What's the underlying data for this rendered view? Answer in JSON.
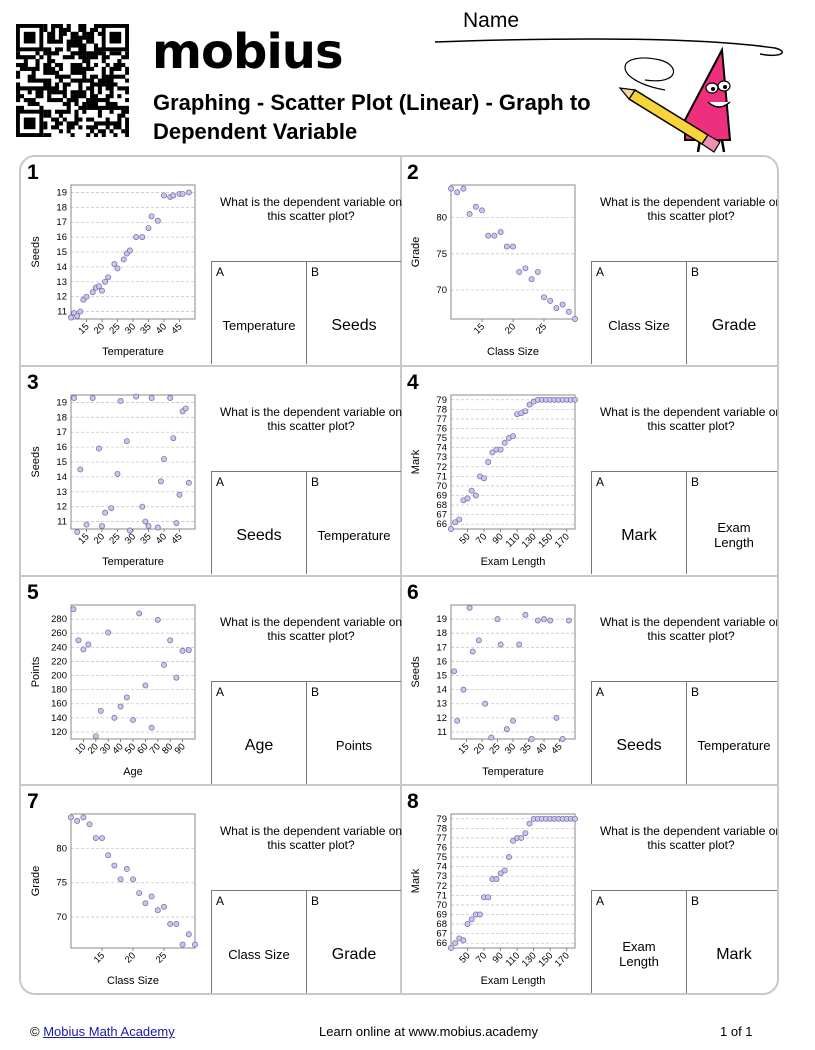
{
  "header": {
    "name_label": "Name",
    "logo": "mobius",
    "title": "Graphing - Scatter Plot (Linear) - Graph to Dependent Variable"
  },
  "colors": {
    "point_fill": "#c9c6ee",
    "point_stroke": "#6c6aa6",
    "grid": "#c8c8c8",
    "mascot_pink": "#ee2f7d",
    "pencil_yellow": "#f6d43a"
  },
  "problems": [
    {
      "number": "1",
      "question": "What is the dependent variable on this scatter plot?",
      "option_a": {
        "letter": "A",
        "text": "Temperature"
      },
      "option_b": {
        "letter": "B",
        "text": "Seeds"
      }
    },
    {
      "number": "2",
      "question": "What is the dependent variable on this scatter plot?",
      "option_a": {
        "letter": "A",
        "text": "Class Size"
      },
      "option_b": {
        "letter": "B",
        "text": "Grade"
      }
    },
    {
      "number": "3",
      "question": "What is the dependent variable on this scatter plot?",
      "option_a": {
        "letter": "A",
        "text": "Seeds"
      },
      "option_b": {
        "letter": "B",
        "text": "Temperature"
      }
    },
    {
      "number": "4",
      "question": "What is the dependent variable on this scatter plot?",
      "option_a": {
        "letter": "A",
        "text": "Mark"
      },
      "option_b": {
        "letter": "B",
        "text": "Exam Length"
      }
    },
    {
      "number": "5",
      "question": "What is the dependent variable on this scatter plot?",
      "option_a": {
        "letter": "A",
        "text": "Age"
      },
      "option_b": {
        "letter": "B",
        "text": "Points"
      }
    },
    {
      "number": "6",
      "question": "What is the dependent variable on this scatter plot?",
      "option_a": {
        "letter": "A",
        "text": "Seeds"
      },
      "option_b": {
        "letter": "B",
        "text": "Temperature"
      }
    },
    {
      "number": "7",
      "question": "What is the dependent variable on this scatter plot?",
      "option_a": {
        "letter": "A",
        "text": "Class Size"
      },
      "option_b": {
        "letter": "B",
        "text": "Grade"
      }
    },
    {
      "number": "8",
      "question": "What is the dependent variable on this scatter plot?",
      "option_a": {
        "letter": "A",
        "text": "Exam Length"
      },
      "option_b": {
        "letter": "B",
        "text": "Mark"
      }
    }
  ],
  "chart_data": [
    {
      "type": "scatter",
      "xlabel": "Temperature",
      "ylabel": "Seeds",
      "xlim": [
        10,
        50
      ],
      "ylim": [
        10.5,
        19.5
      ],
      "xticks": [
        15,
        20,
        25,
        30,
        35,
        40,
        45
      ],
      "yticks": [
        11,
        12,
        13,
        14,
        15,
        16,
        17,
        18,
        19
      ],
      "x": [
        10,
        11,
        12,
        13,
        14,
        15,
        17,
        18,
        19,
        20,
        21,
        22,
        24,
        25,
        27,
        28,
        29,
        31,
        33,
        35,
        36,
        38,
        40,
        42,
        43,
        45,
        46,
        48
      ],
      "y": [
        10.6,
        10.9,
        10.7,
        11.0,
        11.8,
        12.0,
        12.3,
        12.6,
        12.7,
        12.4,
        13.0,
        13.3,
        14.2,
        13.9,
        14.5,
        14.9,
        15.1,
        16.0,
        16.0,
        16.6,
        17.4,
        17.1,
        18.8,
        18.7,
        18.8,
        18.9,
        18.9,
        19.0
      ]
    },
    {
      "type": "scatter",
      "xlabel": "Class Size",
      "ylabel": "Grade",
      "xlim": [
        10,
        30
      ],
      "ylim": [
        66,
        84.5
      ],
      "xticks": [
        15,
        20,
        25
      ],
      "yticks": [
        70,
        75,
        80
      ],
      "x": [
        10,
        11,
        12,
        13,
        14,
        15,
        16,
        17,
        18,
        19,
        20,
        21,
        22,
        23,
        24,
        25,
        26,
        27,
        28,
        29,
        30
      ],
      "y": [
        84,
        83.5,
        84,
        80.5,
        81.5,
        81,
        77.5,
        77.5,
        78,
        76,
        76,
        72.5,
        73,
        71.5,
        72.5,
        69,
        68.5,
        67.5,
        68,
        67,
        66
      ]
    },
    {
      "type": "scatter",
      "xlabel": "Temperature",
      "ylabel": "Seeds",
      "xlim": [
        10,
        50
      ],
      "ylim": [
        10.5,
        19.5
      ],
      "xticks": [
        15,
        20,
        25,
        30,
        35,
        40,
        45
      ],
      "yticks": [
        11,
        12,
        13,
        14,
        15,
        16,
        17,
        18,
        19
      ],
      "x": [
        11,
        12,
        13,
        15,
        17,
        19,
        20,
        21,
        23,
        25,
        26,
        28,
        29,
        31,
        33,
        34,
        35,
        36,
        38,
        39,
        40,
        42,
        43,
        44,
        45,
        46,
        47,
        48
      ],
      "y": [
        19.3,
        10.3,
        14.5,
        10.8,
        19.3,
        15.9,
        10.7,
        11.6,
        11.9,
        14.2,
        19.1,
        16.4,
        10.4,
        19.4,
        12.0,
        11.0,
        10.7,
        19.3,
        10.6,
        13.7,
        15.2,
        19.3,
        16.6,
        10.9,
        12.8,
        18.4,
        18.6,
        13.6
      ]
    },
    {
      "type": "scatter",
      "xlabel": "Exam Length",
      "ylabel": "Mark",
      "xlim": [
        30,
        180
      ],
      "ylim": [
        65.5,
        79.5
      ],
      "xticks": [
        50,
        70,
        90,
        110,
        130,
        150,
        170
      ],
      "yticks": [
        66,
        67,
        68,
        69,
        70,
        71,
        72,
        73,
        74,
        75,
        76,
        77,
        78,
        79
      ],
      "x": [
        30,
        35,
        40,
        45,
        50,
        55,
        60,
        65,
        70,
        75,
        80,
        85,
        90,
        95,
        100,
        105,
        110,
        115,
        120,
        125,
        130,
        135,
        140,
        145,
        150,
        155,
        160,
        165,
        170,
        175,
        180
      ],
      "y": [
        65.5,
        66.2,
        66.5,
        68.5,
        68.7,
        69.5,
        69,
        71,
        70.8,
        72.5,
        73.5,
        73.8,
        73.8,
        74.5,
        75,
        75.2,
        77.5,
        77.6,
        77.8,
        78.5,
        78.8,
        79,
        79,
        79,
        79,
        79,
        79,
        79,
        79,
        79,
        79
      ]
    },
    {
      "type": "scatter",
      "xlabel": "Age",
      "ylabel": "Points",
      "xlim": [
        0,
        100
      ],
      "ylim": [
        110,
        300
      ],
      "xticks": [
        10,
        20,
        30,
        40,
        50,
        60,
        70,
        80,
        90
      ],
      "yticks": [
        120,
        140,
        160,
        180,
        200,
        220,
        240,
        260,
        280
      ],
      "x": [
        2,
        6,
        10,
        14,
        20,
        24,
        30,
        35,
        40,
        45,
        50,
        55,
        60,
        65,
        70,
        75,
        80,
        85,
        90,
        95
      ],
      "y": [
        294,
        250,
        237,
        244,
        114,
        150,
        261,
        140,
        156,
        169,
        137,
        288,
        186,
        126,
        279,
        215,
        250,
        197,
        235,
        236
      ]
    },
    {
      "type": "scatter",
      "xlabel": "Temperature",
      "ylabel": "Seeds",
      "xlim": [
        10,
        50
      ],
      "ylim": [
        10.5,
        20
      ],
      "xticks": [
        15,
        20,
        25,
        30,
        35,
        40,
        45
      ],
      "yticks": [
        11,
        12,
        13,
        14,
        15,
        16,
        17,
        18,
        19
      ],
      "x": [
        11,
        12,
        14,
        16,
        17,
        19,
        21,
        23,
        25,
        26,
        28,
        30,
        32,
        34,
        36,
        38,
        40,
        42,
        44,
        46,
        48
      ],
      "y": [
        15.3,
        11.8,
        14.0,
        19.8,
        16.7,
        17.5,
        13.0,
        10.6,
        19.0,
        17.2,
        11.2,
        11.8,
        17.2,
        19.3,
        10.5,
        18.9,
        19.0,
        18.9,
        12.0,
        10.5,
        18.9
      ]
    },
    {
      "type": "scatter",
      "xlabel": "Class Size",
      "ylabel": "Grade",
      "xlim": [
        10,
        30
      ],
      "ylim": [
        65.5,
        85
      ],
      "xticks": [
        15,
        20,
        25
      ],
      "yticks": [
        70,
        75,
        80
      ],
      "x": [
        10,
        11,
        12,
        13,
        14,
        15,
        16,
        17,
        18,
        19,
        20,
        21,
        22,
        23,
        24,
        25,
        26,
        27,
        28,
        29,
        30
      ],
      "y": [
        84.5,
        84,
        84.5,
        83.5,
        81.5,
        81.5,
        79,
        77.5,
        75.5,
        77,
        75.5,
        73.5,
        72,
        73,
        71,
        71.5,
        69,
        69,
        66,
        67.5,
        66
      ]
    },
    {
      "type": "scatter",
      "xlabel": "Exam Length",
      "ylabel": "Mark",
      "xlim": [
        30,
        180
      ],
      "ylim": [
        65.5,
        79.5
      ],
      "xticks": [
        50,
        70,
        90,
        110,
        130,
        150,
        170
      ],
      "yticks": [
        66,
        67,
        68,
        69,
        70,
        71,
        72,
        73,
        74,
        75,
        76,
        77,
        78,
        79
      ],
      "x": [
        30,
        35,
        40,
        45,
        50,
        55,
        60,
        65,
        70,
        75,
        80,
        85,
        90,
        95,
        100,
        105,
        110,
        115,
        120,
        125,
        130,
        135,
        140,
        145,
        150,
        155,
        160,
        165,
        170,
        175,
        180
      ],
      "y": [
        65.5,
        66,
        66.5,
        66.3,
        68,
        68.5,
        69,
        69,
        70.8,
        70.8,
        72.7,
        72.7,
        73.3,
        73.6,
        75,
        76.7,
        77,
        77,
        77.5,
        78.5,
        79,
        79,
        79,
        79,
        79,
        79,
        79,
        79,
        79,
        79,
        79
      ]
    }
  ],
  "footer": {
    "copyright_symbol": "©",
    "copyright_link": "Mobius Math Academy",
    "center": "Learn online at www.mobius.academy",
    "page": "1 of 1"
  }
}
